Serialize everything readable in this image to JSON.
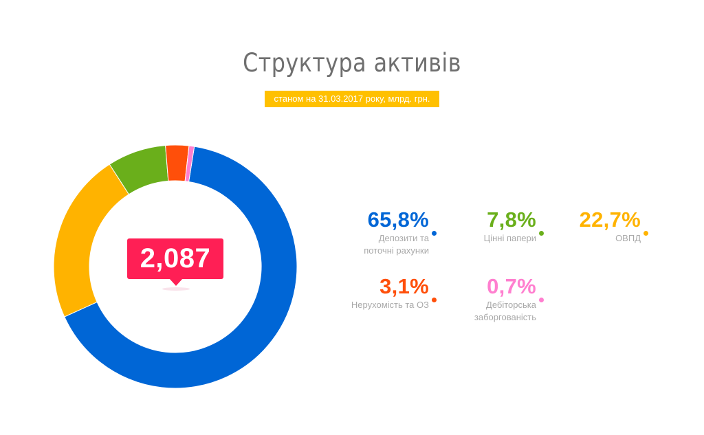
{
  "header": {
    "title": "Структура активів",
    "subtitle": "станом на 31.03.2017 року, млрд. грн."
  },
  "total": {
    "value": "2,087"
  },
  "legend": [
    {
      "pct": "65,8%",
      "label_lines": [
        "Депозити та",
        "поточні рахунки"
      ],
      "color": "#0066d6"
    },
    {
      "pct": "7,8%",
      "label_lines": [
        "Цінні папери"
      ],
      "color": "#6aaf1b"
    },
    {
      "pct": "22,7%",
      "label_lines": [
        "ОВПД"
      ],
      "color": "#ffb300"
    },
    {
      "pct": "3,1%",
      "label_lines": [
        "Нерухомість та ОЗ"
      ],
      "color": "#ff4f0a"
    },
    {
      "pct": "0,7%",
      "label_lines": [
        "Дебіторська",
        "заборгованість"
      ],
      "color": "#ff7fcf"
    }
  ],
  "chart_data": {
    "type": "pie",
    "subtype": "donut",
    "title": "Структура активів",
    "subtitle": "станом на 31.03.2017 року, млрд. грн.",
    "center_label": "2,087",
    "unit": "%",
    "categories": [
      "Депозити та поточні рахунки",
      "ОВПД",
      "Цінні папери",
      "Нерухомість та ОЗ",
      "Дебіторська заборгованість"
    ],
    "values": [
      65.8,
      22.7,
      7.8,
      3.1,
      0.7
    ],
    "colors": [
      "#0066d6",
      "#ffb300",
      "#6aaf1b",
      "#ff4f0a",
      "#ff7fcf"
    ],
    "legend_position": "right"
  }
}
